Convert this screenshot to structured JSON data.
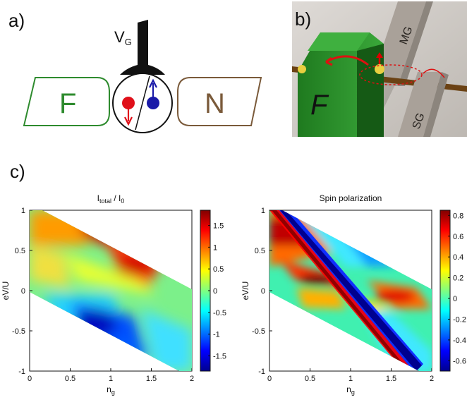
{
  "panel_a": {
    "label": "a)",
    "gate_label": "V",
    "gate_sub": "G",
    "left_lead": "F",
    "right_lead": "N",
    "colors": {
      "ferromagnet": "#2e8b2e",
      "normal": "#7a5a3a",
      "spin_down": "#e0101a",
      "spin_up": "#1a1aa8"
    }
  },
  "panel_b": {
    "label": "b)",
    "ferromagnet_label": "F",
    "mid_gate_label": "MG",
    "side_gate_label": "SG"
  },
  "panel_c": {
    "label": "c)"
  },
  "chart_data": [
    {
      "type": "heatmap",
      "title": "I_total / I_0",
      "title_parts": {
        "main": "I",
        "sub1": "total",
        "sep": " / I",
        "sub2": "0"
      },
      "xlabel_parts": {
        "main": "n",
        "sub": "g"
      },
      "ylabel": "eV/U",
      "xlim": [
        0,
        2
      ],
      "ylim": [
        -1,
        1
      ],
      "x_ticks": [
        "0",
        "0.5",
        "1",
        "1.5",
        "2"
      ],
      "y_ticks": [
        "1",
        "0.5",
        "0",
        "-0.5",
        "-1"
      ],
      "colorbar_ticks": [
        "1.5",
        "1",
        "0.5",
        "0",
        "-0.5",
        "-1",
        "-1.5"
      ],
      "colorbar_range": [
        -1.85,
        1.85
      ],
      "colormap": "jet"
    },
    {
      "type": "heatmap",
      "title": "Spin polarization",
      "xlabel_parts": {
        "main": "n",
        "sub": "g"
      },
      "ylabel": "eV/U",
      "xlim": [
        0,
        2
      ],
      "ylim": [
        -1,
        1
      ],
      "x_ticks": [
        "0",
        "0.5",
        "1",
        "1.5",
        "2"
      ],
      "y_ticks": [
        "1",
        "0.5",
        "0",
        "-0.5",
        "-1"
      ],
      "colorbar_ticks": [
        "0.8",
        "0.6",
        "0.4",
        "0.2",
        "0",
        "-0.2",
        "-0.4",
        "-0.6"
      ],
      "colorbar_range": [
        -0.7,
        0.85
      ],
      "colormap": "jet"
    }
  ]
}
